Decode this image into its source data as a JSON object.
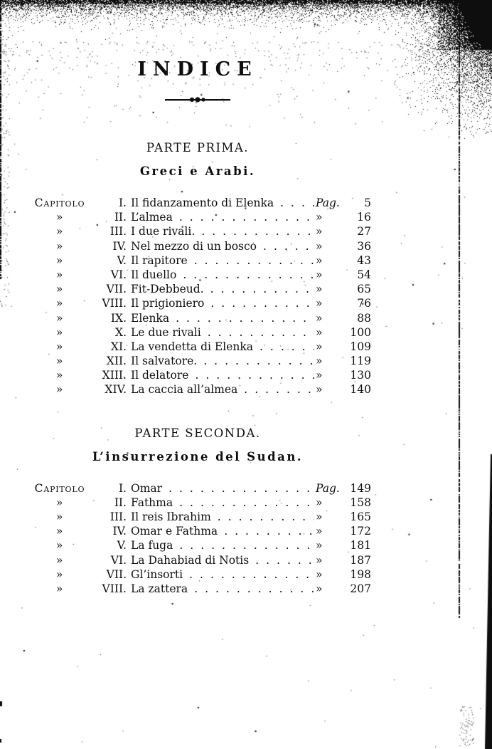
{
  "colors": {
    "ink": "#0e0e0e",
    "paper": "#ffffff"
  },
  "title": "INDICE",
  "part1": {
    "heading": "PARTE PRIMA.",
    "subtitle": "Greci e Arabi.",
    "entries": [
      {
        "label": "Capitolo",
        "num": "I.",
        "title": "Il fidanzamento di Elenka",
        "mark": "Pag.",
        "page": "5"
      },
      {
        "label": "»",
        "num": "II.",
        "title": "L’almea",
        "mark": "»",
        "page": "16"
      },
      {
        "label": "»",
        "num": "III.",
        "title": "I due rivali.",
        "mark": "»",
        "page": "27"
      },
      {
        "label": "»",
        "num": "IV.",
        "title": "Nel mezzo di un bosco",
        "mark": "»",
        "page": "36"
      },
      {
        "label": "»",
        "num": "V.",
        "title": "Il rapitore",
        "mark": "»",
        "page": "43"
      },
      {
        "label": "»",
        "num": "VI.",
        "title": "Il duello",
        "mark": "»",
        "page": "54"
      },
      {
        "label": "»",
        "num": "VII.",
        "title": "Fit-Debbeud.",
        "mark": "»",
        "page": "65"
      },
      {
        "label": "»",
        "num": "VIII.",
        "title": "Il prigioniero",
        "mark": "»",
        "page": "76"
      },
      {
        "label": "»",
        "num": "IX.",
        "title": "Elenka",
        "mark": "»",
        "page": "88"
      },
      {
        "label": "»",
        "num": "X.",
        "title": "Le due rivali",
        "mark": "»",
        "page": "100"
      },
      {
        "label": "»",
        "num": "XI.",
        "title": "La vendetta di Elenka",
        "mark": "»",
        "page": "109"
      },
      {
        "label": "»",
        "num": "XII.",
        "title": "Il salvatore.",
        "mark": "»",
        "page": "119"
      },
      {
        "label": "»",
        "num": "XIII.",
        "title": "Il delatore",
        "mark": "»",
        "page": "130"
      },
      {
        "label": "»",
        "num": "XIV.",
        "title": "La caccia all’almea",
        "mark": "»",
        "page": "140"
      }
    ]
  },
  "part2": {
    "heading": "PARTE SECONDA.",
    "subtitle": "L’insurrezione del Sudan.",
    "entries": [
      {
        "label": "Capitolo",
        "num": "I.",
        "title": "Omar",
        "mark": "Pag.",
        "page": "149"
      },
      {
        "label": "»",
        "num": "II.",
        "title": "Fathma",
        "mark": "»",
        "page": "158"
      },
      {
        "label": "»",
        "num": "III.",
        "title": "Il reis Ibrahim",
        "mark": "»",
        "page": "165"
      },
      {
        "label": "»",
        "num": "IV.",
        "title": "Omar e Fathma",
        "mark": "»",
        "page": "172"
      },
      {
        "label": "»",
        "num": "V.",
        "title": "La fuga",
        "mark": "»",
        "page": "181"
      },
      {
        "label": "»",
        "num": "VI.",
        "title": "La Dahabiad di Notis",
        "mark": "»",
        "page": "187"
      },
      {
        "label": "»",
        "num": "VII.",
        "title": "Gl’insorti",
        "mark": "»",
        "page": "198"
      },
      {
        "label": "»",
        "num": "VIII.",
        "title": "La zattera",
        "mark": "»",
        "page": "207"
      }
    ]
  }
}
